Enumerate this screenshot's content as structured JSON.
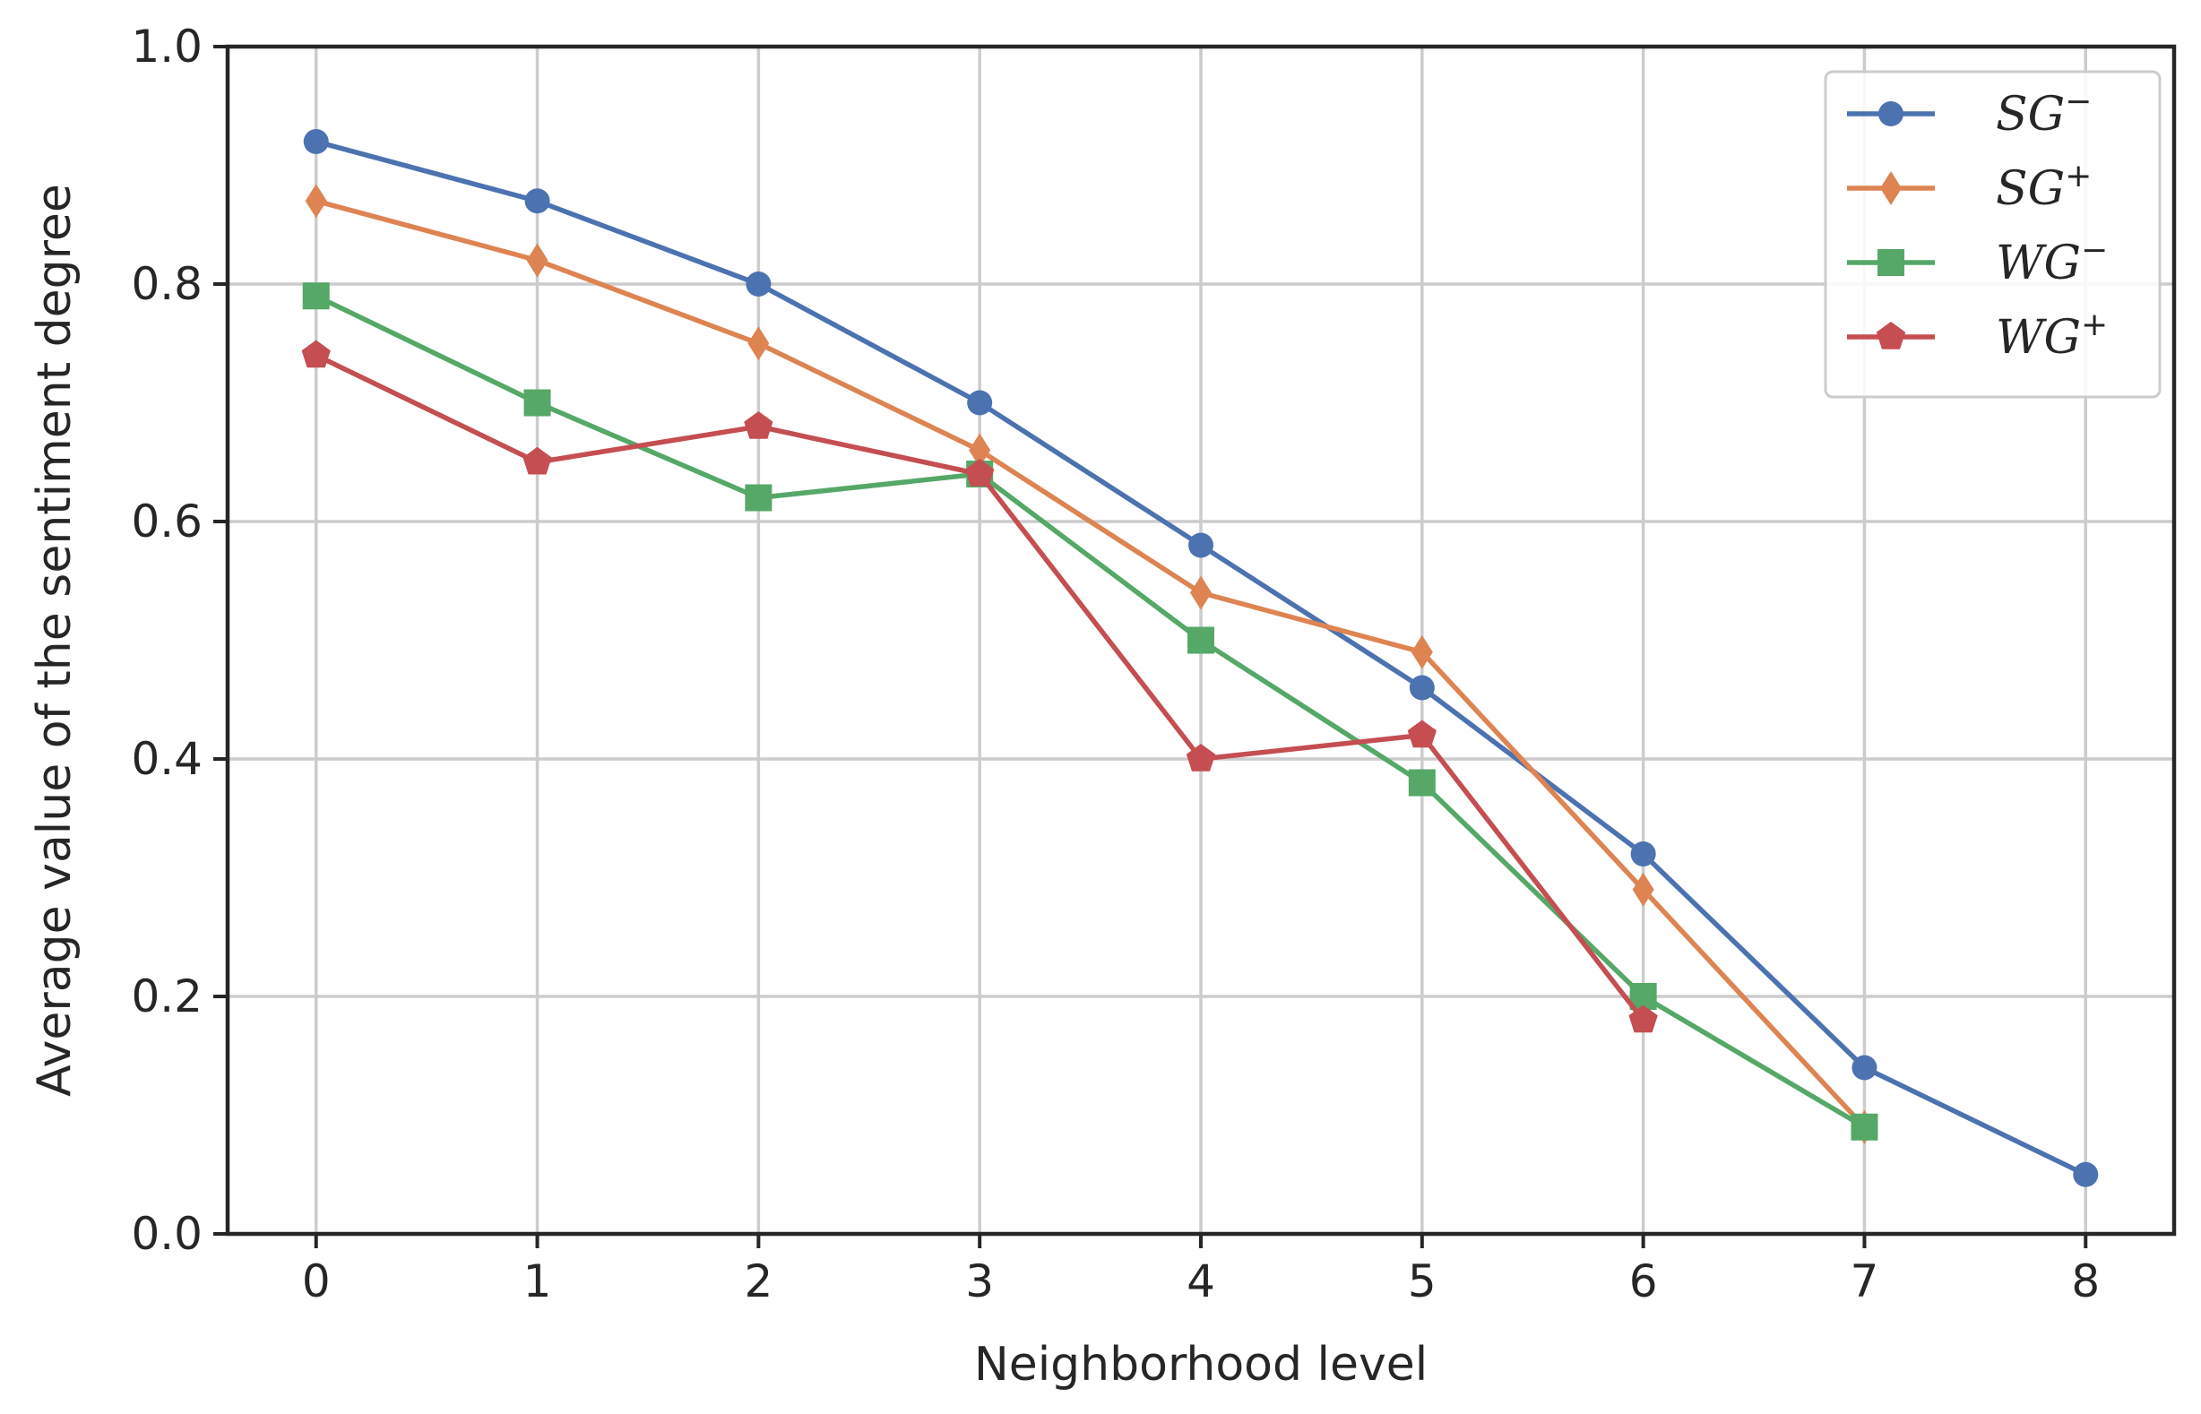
{
  "chart_data": {
    "type": "line",
    "title": "",
    "xlabel": "Neighborhood level",
    "ylabel": "Average value of the sentiment degree",
    "xlim": [
      -0.4,
      8.4
    ],
    "ylim": [
      0.0,
      1.0
    ],
    "xticks": [
      0,
      1,
      2,
      3,
      4,
      5,
      6,
      7,
      8
    ],
    "xtick_labels": [
      "0",
      "1",
      "2",
      "3",
      "4",
      "5",
      "6",
      "7",
      "8"
    ],
    "yticks": [
      0.0,
      0.2,
      0.4,
      0.6,
      0.8,
      1.0
    ],
    "ytick_labels": [
      "0.0",
      "0.2",
      "0.4",
      "0.6",
      "0.8",
      "1.0"
    ],
    "grid": true,
    "legend_position": "top-right",
    "series": [
      {
        "name": "SG",
        "sup": "−",
        "color": "#4c72b0",
        "marker": "circle",
        "x": [
          0,
          1,
          2,
          3,
          4,
          5,
          6,
          7,
          8
        ],
        "y": [
          0.92,
          0.87,
          0.8,
          0.7,
          0.58,
          0.46,
          0.32,
          0.14,
          0.05
        ]
      },
      {
        "name": "SG",
        "sup": "+",
        "color": "#dd8452",
        "marker": "diamond",
        "x": [
          0,
          1,
          2,
          3,
          4,
          5,
          6,
          7
        ],
        "y": [
          0.87,
          0.82,
          0.75,
          0.66,
          0.54,
          0.49,
          0.29,
          0.09
        ]
      },
      {
        "name": "WG",
        "sup": "−",
        "color": "#55a868",
        "marker": "square",
        "x": [
          0,
          1,
          2,
          3,
          4,
          5,
          6,
          7
        ],
        "y": [
          0.79,
          0.7,
          0.62,
          0.64,
          0.5,
          0.38,
          0.2,
          0.09
        ]
      },
      {
        "name": "WG",
        "sup": "+",
        "color": "#c44e52",
        "marker": "pentagon",
        "x": [
          0,
          1,
          2,
          3,
          4,
          5,
          6
        ],
        "y": [
          0.74,
          0.65,
          0.68,
          0.64,
          0.4,
          0.42,
          0.18
        ]
      }
    ]
  }
}
